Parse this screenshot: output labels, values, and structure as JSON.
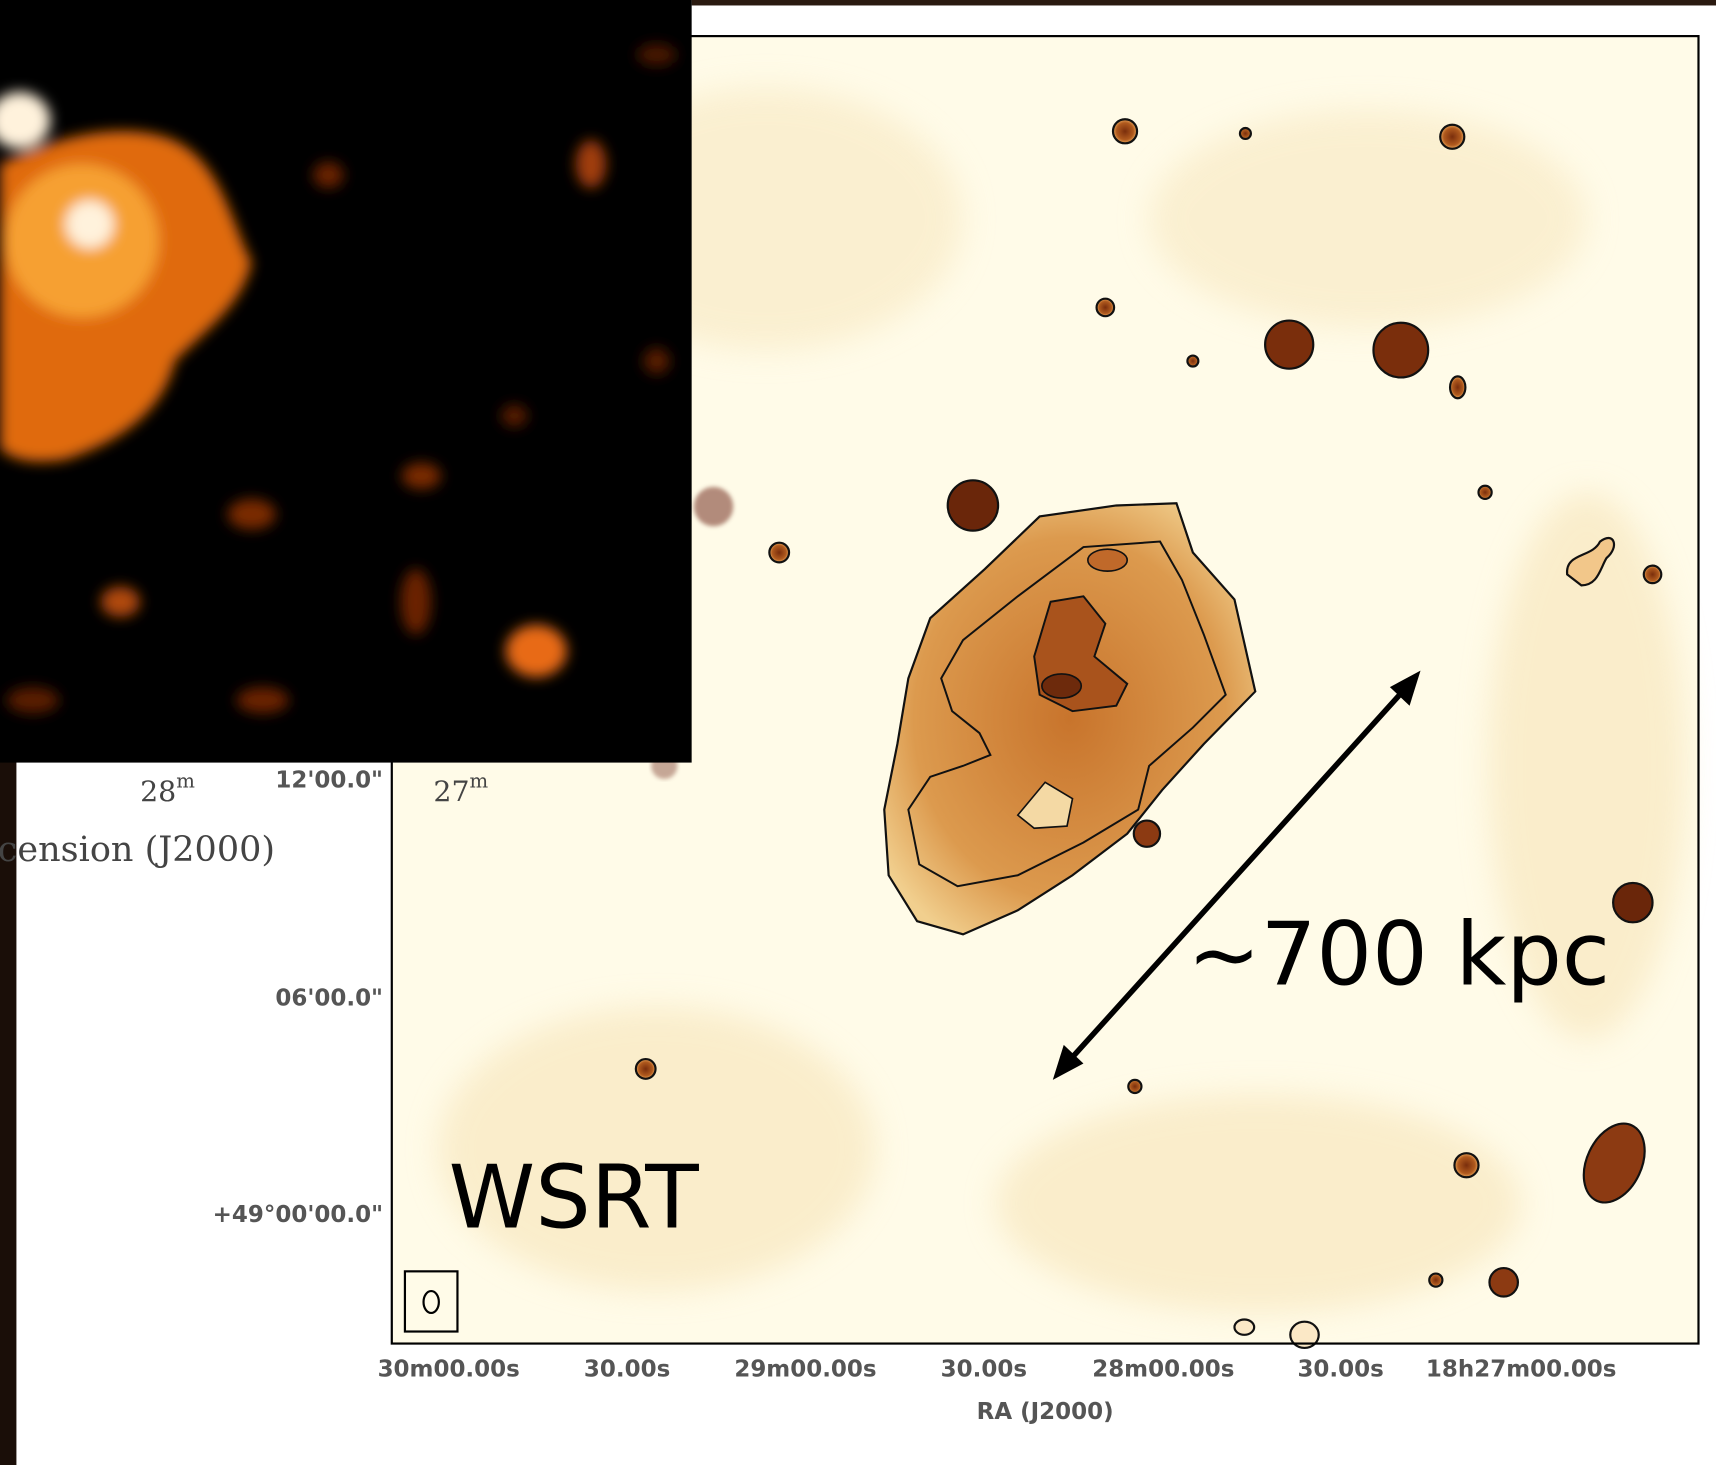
{
  "main_panel": {
    "telescope_label": "WSRT",
    "scale_label": "~700 kpc",
    "x_axis_label": "RA (J2000)",
    "x_tick_labels": [
      "30m00.00s",
      "30.00s",
      "29m00.00s",
      "30.00s",
      "28m00.00s",
      "30.00s",
      "18h27m00.00s"
    ],
    "y_tick_labels": [
      "12'00.0\"",
      "06'00.0\"",
      "+49°00'00.0\""
    ]
  },
  "inset_panel": {
    "x_tick_labels": [
      {
        "main": "28",
        "sup": "m"
      },
      {
        "main": "27",
        "sup": "m"
      }
    ],
    "x_axis_label": "cension (J2000)"
  }
}
